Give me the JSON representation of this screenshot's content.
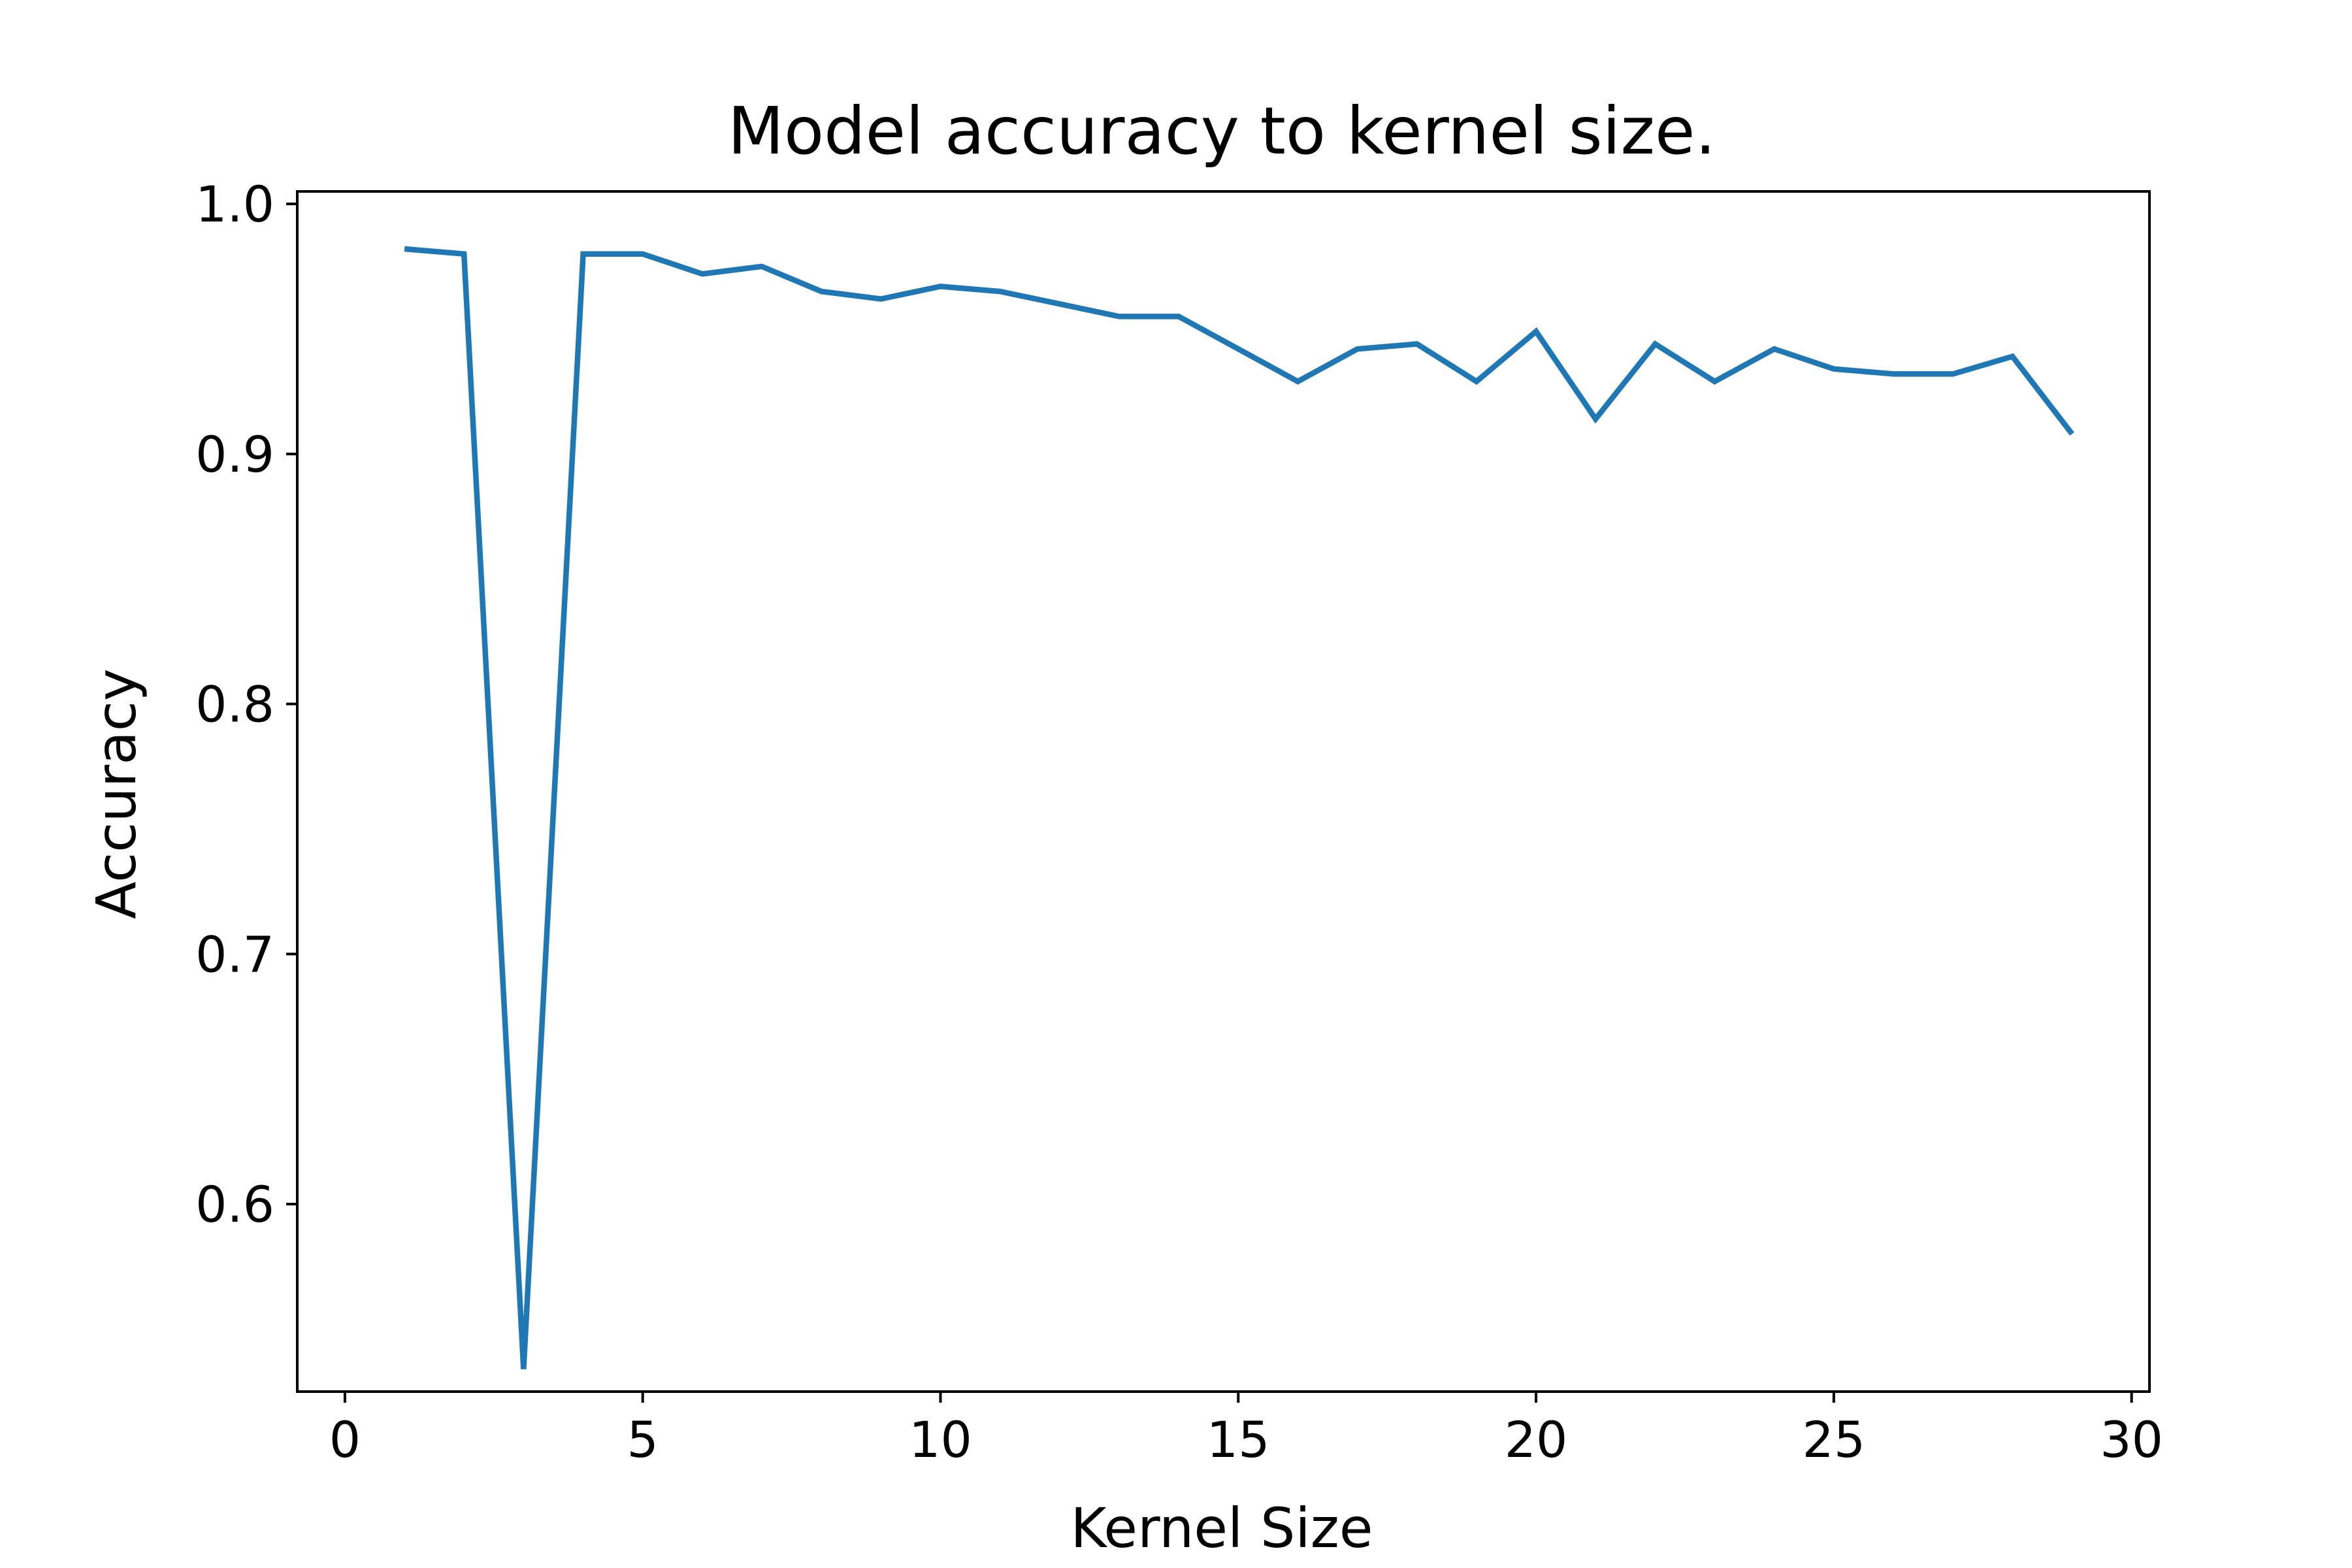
{
  "chart_data": {
    "type": "line",
    "title": "Model accuracy to kernel size.",
    "xlabel": "Kernel Size",
    "ylabel": "Accuracy",
    "xlim": [
      -0.8,
      30.3
    ],
    "ylim": [
      0.525,
      1.005
    ],
    "xticks": [
      0,
      5,
      10,
      15,
      20,
      25,
      30
    ],
    "yticks": [
      0.6,
      0.7,
      0.8,
      0.9,
      1.0
    ],
    "xtick_labels": [
      "0",
      "5",
      "10",
      "15",
      "20",
      "25",
      "30"
    ],
    "ytick_labels": [
      "0.6",
      "0.7",
      "0.8",
      "0.9",
      "1.0"
    ],
    "grid": false,
    "series": [
      {
        "color": "#1f77b4",
        "x": [
          1,
          2,
          3,
          4,
          5,
          6,
          7,
          8,
          9,
          10,
          11,
          12,
          13,
          14,
          15,
          16,
          17,
          18,
          19,
          20,
          21,
          22,
          23,
          24,
          25,
          26,
          27,
          28,
          29
        ],
        "values": [
          0.982,
          0.98,
          0.534,
          0.98,
          0.98,
          0.972,
          0.975,
          0.965,
          0.962,
          0.967,
          0.965,
          0.96,
          0.955,
          0.955,
          0.942,
          0.929,
          0.942,
          0.944,
          0.929,
          0.949,
          0.914,
          0.944,
          0.929,
          0.942,
          0.934,
          0.932,
          0.932,
          0.939,
          0.908
        ]
      }
    ]
  }
}
